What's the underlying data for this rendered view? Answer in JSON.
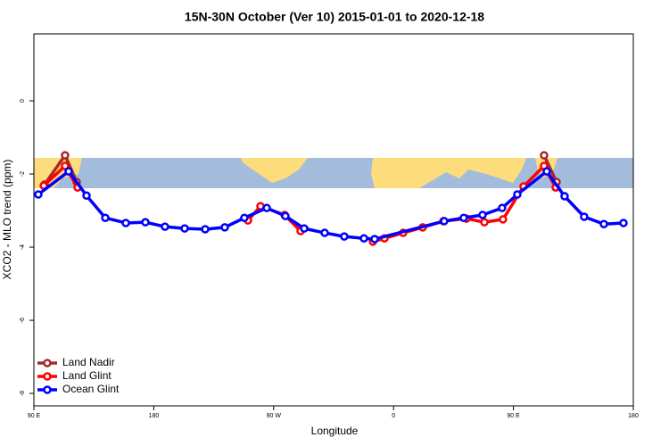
{
  "chart_data": {
    "type": "line",
    "title": "15N-30N October (Ver 10)   2015-01-01 to 2020-12-18",
    "x_label": "Longitude",
    "y_label": "XCO2 - MLO trend (ppm)",
    "xlim": [
      90,
      540
    ],
    "ylim": [
      -8.34,
      1.83
    ],
    "xticks": [
      {
        "value": 90,
        "label": "90 E"
      },
      180,
      {
        "value": 270,
        "label": "90 W"
      },
      {
        "value": 360,
        "label": "0"
      },
      {
        "value": 450,
        "label": "90 E"
      },
      {
        "value": 540,
        "label": "180"
      }
    ],
    "yticks": [
      0,
      -2,
      -4,
      -6,
      -8
    ],
    "legend": "bottom-left",
    "series": [
      {
        "name": "Land Nadir",
        "color": "#a52a2a",
        "x": [
          98.0,
          113.4,
          122.1,
          null,
          473.0,
          482.4
        ],
        "values": [
          -2.29,
          -1.49,
          -2.22,
          null,
          -1.49,
          -2.22
        ]
      },
      {
        "name": "Land Glint",
        "color": "#ff0000",
        "x": [
          97.4,
          113.4,
          122.8,
          null,
          250.7,
          260.1,
          278.2,
          290.2,
          null,
          344.5,
          353.2,
          367.2,
          381.9,
          397.4,
          414.8,
          428.2,
          442.2,
          457.6,
          473.0,
          481.7
        ],
        "values": [
          -2.32,
          -1.78,
          -2.37,
          null,
          -3.27,
          -2.88,
          -3.12,
          -3.56,
          null,
          -3.85,
          -3.76,
          -3.61,
          -3.46,
          -3.29,
          -3.22,
          -3.32,
          -3.24,
          -2.34,
          -1.78,
          -2.37
        ]
      },
      {
        "name": "Ocean Glint",
        "color": "#0000ff",
        "x": [
          93.3,
          116.1,
          129.5,
          143.6,
          159.0,
          173.7,
          188.4,
          203.2,
          218.6,
          233.3,
          248.0,
          264.8,
          278.8,
          292.9,
          308.3,
          323.0,
          337.8,
          345.8,
          398.0,
          412.7,
          426.8,
          441.5,
          452.9,
          475.0,
          488.4,
          503.1,
          517.9,
          532.6
        ],
        "values": [
          -2.56,
          -1.93,
          -2.59,
          -3.2,
          -3.34,
          -3.32,
          -3.44,
          -3.49,
          -3.51,
          -3.46,
          -3.2,
          -2.93,
          -3.15,
          -3.49,
          -3.61,
          -3.71,
          -3.76,
          -3.78,
          -3.29,
          -3.2,
          -3.12,
          -2.93,
          -2.56,
          -1.93,
          -2.61,
          -3.17,
          -3.37,
          -3.34
        ]
      }
    ]
  }
}
